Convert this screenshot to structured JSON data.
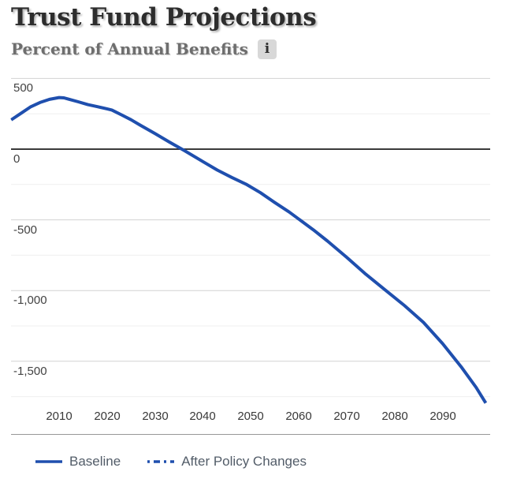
{
  "header": {
    "title": "Trust Fund Projections",
    "subtitle": "Percent of Annual Benefits",
    "info_icon_glyph": "i"
  },
  "colors": {
    "line_blue": "#1f4fae",
    "zero_line": "#3a3a3a",
    "grid_major": "#d2d2d2",
    "grid_minor": "#efefef",
    "separator": "#979797",
    "title_text": "#2d2d2d",
    "subtitle_text": "#6e6e6e",
    "axis_text": "#424242",
    "legend_text": "#525c68",
    "info_icon_bg": "#d8d8d8"
  },
  "chart_data": {
    "type": "line",
    "title": "Trust Fund Projections",
    "ylabel_unit": "Percent of Annual Benefits",
    "grid": "horizontal-only",
    "legend_position": "bottom-left",
    "x_axis": {
      "range": [
        2000,
        2100
      ],
      "tick_years": [
        2010,
        2020,
        2030,
        2040,
        2050,
        2060,
        2070,
        2080,
        2090
      ],
      "tick_labels": [
        "2010",
        "2020",
        "2030",
        "2040",
        "2050",
        "2060",
        "2070",
        "2080",
        "2090"
      ]
    },
    "y_axis": {
      "range": [
        -1850,
        550
      ],
      "tick_values": [
        500,
        0,
        -500,
        -1000,
        -1500
      ],
      "tick_labels": [
        "500",
        "0",
        "-500",
        "-1,000",
        "-1,500"
      ],
      "gridline_values": [
        500,
        250,
        0,
        -250,
        -500,
        -750,
        -1000,
        -1250,
        -1500,
        -1750
      ],
      "zero_line_value": 0
    },
    "series": [
      {
        "name": "Baseline",
        "line_style": "solid",
        "color": "#1f4fae",
        "points": [
          [
            2000,
            207
          ],
          [
            2002,
            252
          ],
          [
            2004,
            298
          ],
          [
            2006,
            330
          ],
          [
            2008,
            352
          ],
          [
            2010,
            365
          ],
          [
            2011,
            363
          ],
          [
            2012,
            353
          ],
          [
            2014,
            335
          ],
          [
            2016,
            315
          ],
          [
            2018,
            300
          ],
          [
            2020,
            285
          ],
          [
            2021,
            277
          ],
          [
            2023,
            243
          ],
          [
            2025,
            208
          ],
          [
            2027,
            168
          ],
          [
            2030,
            110
          ],
          [
            2033,
            50
          ],
          [
            2036,
            -8
          ],
          [
            2040,
            -88
          ],
          [
            2043,
            -148
          ],
          [
            2046,
            -200
          ],
          [
            2049,
            -248
          ],
          [
            2052,
            -308
          ],
          [
            2055,
            -378
          ],
          [
            2058,
            -445
          ],
          [
            2060,
            -495
          ],
          [
            2063,
            -570
          ],
          [
            2066,
            -650
          ],
          [
            2070,
            -765
          ],
          [
            2074,
            -885
          ],
          [
            2078,
            -995
          ],
          [
            2082,
            -1105
          ],
          [
            2086,
            -1225
          ],
          [
            2090,
            -1375
          ],
          [
            2094,
            -1545
          ],
          [
            2097,
            -1685
          ],
          [
            2099,
            -1795
          ]
        ]
      },
      {
        "name": "After Policy Changes",
        "line_style": "dashed",
        "color": "#1f4fae",
        "points": []
      }
    ],
    "legend_items": [
      {
        "label": "Baseline",
        "style": "solid"
      },
      {
        "label": "After Policy Changes",
        "style": "dashed"
      }
    ]
  }
}
